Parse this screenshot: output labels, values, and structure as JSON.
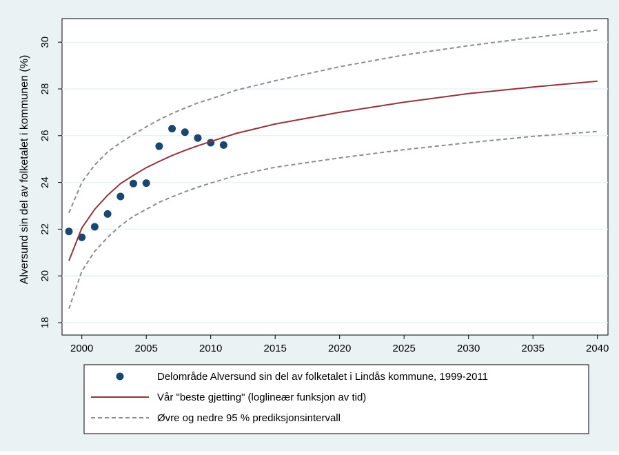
{
  "chart_data": {
    "type": "line",
    "ylabel": "Alversund sin del av folketalet i kommunen (%)",
    "xlim": [
      1999,
      2040
    ],
    "ylim": [
      18,
      31
    ],
    "x_ticks": [
      2000,
      2005,
      2010,
      2015,
      2020,
      2025,
      2030,
      2035,
      2040
    ],
    "y_ticks": [
      18,
      20,
      22,
      24,
      26,
      28,
      30
    ],
    "grid": true,
    "legend_position": "bottom",
    "colors": {
      "observed": "#1a476f",
      "fit": "#90353b",
      "interval": "#8c8c8c",
      "outer_background": "#eaf2f3",
      "plot_background": "#ffffff",
      "grid": "#eaf2f3"
    },
    "series": [
      {
        "name": "Delområde Alversund sin del av folketalet i Lindås kommune, 1999-2011",
        "type": "scatter",
        "x": [
          1999,
          2000,
          2001,
          2002,
          2003,
          2004,
          2005,
          2006,
          2007,
          2008,
          2009,
          2010,
          2011
        ],
        "y": [
          21.9,
          21.65,
          22.1,
          22.65,
          23.4,
          23.95,
          23.97,
          25.55,
          26.3,
          26.15,
          25.9,
          25.7,
          25.6
        ]
      },
      {
        "name": "Vår \"beste gjetting\" (loglineær funksjon av tid)",
        "type": "line",
        "style": "solid",
        "x": [
          1999,
          2000,
          2001,
          2002,
          2003,
          2004,
          2005,
          2006,
          2007,
          2008,
          2009,
          2010,
          2012,
          2015,
          2020,
          2025,
          2030,
          2035,
          2040
        ],
        "y": [
          20.65,
          22.05,
          22.85,
          23.45,
          23.95,
          24.3,
          24.63,
          24.9,
          25.15,
          25.37,
          25.57,
          25.75,
          26.1,
          26.5,
          27.0,
          27.43,
          27.8,
          28.08,
          28.33
        ]
      },
      {
        "name": "Øvre og nedre 95 % prediksjonsintervall",
        "type": "line",
        "style": "dashed",
        "x": [
          1999,
          2000,
          2001,
          2002,
          2003,
          2004,
          2005,
          2006,
          2007,
          2008,
          2009,
          2010,
          2012,
          2015,
          2020,
          2025,
          2030,
          2035,
          2040
        ],
        "y": [
          22.7,
          24.0,
          24.75,
          25.3,
          25.7,
          26.05,
          26.38,
          26.68,
          26.95,
          27.18,
          27.4,
          27.57,
          27.95,
          28.35,
          28.95,
          29.45,
          29.85,
          30.2,
          30.52
        ]
      },
      {
        "name": "",
        "type": "line",
        "style": "dashed",
        "x": [
          1999,
          2000,
          2001,
          2002,
          2003,
          2004,
          2005,
          2006,
          2007,
          2008,
          2009,
          2010,
          2012,
          2015,
          2020,
          2025,
          2030,
          2035,
          2040
        ],
        "y": [
          18.6,
          20.2,
          21.05,
          21.65,
          22.15,
          22.55,
          22.85,
          23.15,
          23.38,
          23.6,
          23.8,
          23.97,
          24.3,
          24.65,
          25.05,
          25.4,
          25.7,
          25.97,
          26.18
        ]
      }
    ]
  }
}
